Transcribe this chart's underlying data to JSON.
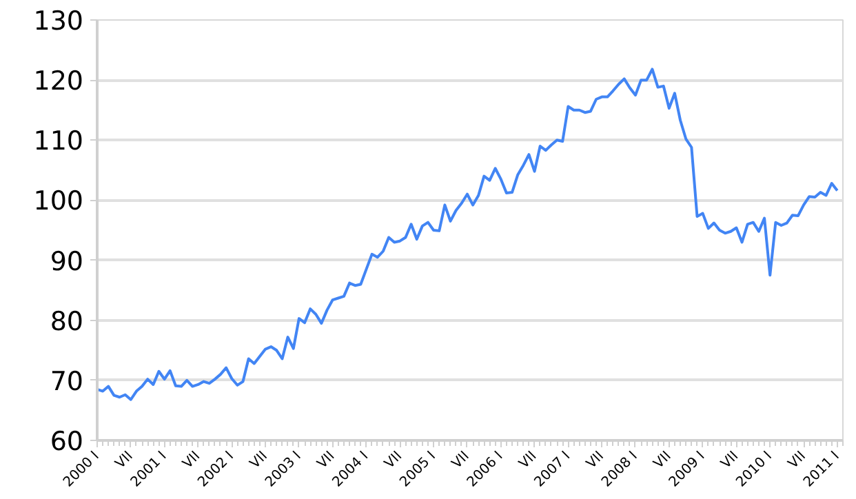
{
  "chart_data": {
    "type": "line",
    "x": [
      "2000-01",
      "2000-02",
      "2000-03",
      "2000-04",
      "2000-05",
      "2000-06",
      "2000-07",
      "2000-08",
      "2000-09",
      "2000-10",
      "2000-11",
      "2000-12",
      "2001-01",
      "2001-02",
      "2001-03",
      "2001-04",
      "2001-05",
      "2001-06",
      "2001-07",
      "2001-08",
      "2001-09",
      "2001-10",
      "2001-11",
      "2001-12",
      "2002-01",
      "2002-02",
      "2002-03",
      "2002-04",
      "2002-05",
      "2002-06",
      "2002-07",
      "2002-08",
      "2002-09",
      "2002-10",
      "2002-11",
      "2002-12",
      "2003-01",
      "2003-02",
      "2003-03",
      "2003-04",
      "2003-05",
      "2003-06",
      "2003-07",
      "2003-08",
      "2003-09",
      "2003-10",
      "2003-11",
      "2003-12",
      "2004-01",
      "2004-02",
      "2004-03",
      "2004-04",
      "2004-05",
      "2004-06",
      "2004-07",
      "2004-08",
      "2004-09",
      "2004-10",
      "2004-11",
      "2004-12",
      "2005-01",
      "2005-02",
      "2005-03",
      "2005-04",
      "2005-05",
      "2005-06",
      "2005-07",
      "2005-08",
      "2005-09",
      "2005-10",
      "2005-11",
      "2005-12",
      "2006-01",
      "2006-02",
      "2006-03",
      "2006-04",
      "2006-05",
      "2006-06",
      "2006-07",
      "2006-08",
      "2006-09",
      "2006-10",
      "2006-11",
      "2006-12",
      "2007-01",
      "2007-02",
      "2007-03",
      "2007-04",
      "2007-05",
      "2007-06",
      "2007-07",
      "2007-08",
      "2007-09",
      "2007-10",
      "2007-11",
      "2007-12",
      "2008-01",
      "2008-02",
      "2008-03",
      "2008-04",
      "2008-05",
      "2008-06",
      "2008-07",
      "2008-08",
      "2008-09",
      "2008-10",
      "2008-11",
      "2008-12",
      "2009-01",
      "2009-02",
      "2009-03",
      "2009-04",
      "2009-05",
      "2009-06",
      "2009-07",
      "2009-08",
      "2009-09",
      "2009-10",
      "2009-11",
      "2009-12",
      "2010-01",
      "2010-02",
      "2010-03",
      "2010-04",
      "2010-05",
      "2010-06",
      "2010-07",
      "2010-08",
      "2010-09",
      "2010-10",
      "2010-11",
      "2010-12",
      "2011-01"
    ],
    "series": [
      {
        "color": "#4285f4",
        "values": [
          68.5,
          68.2,
          69,
          67.5,
          67.2,
          67.6,
          66.8,
          68.2,
          69,
          70.2,
          69.3,
          71.5,
          70.2,
          71.6,
          69.1,
          69,
          70,
          69,
          69.3,
          69.8,
          69.5,
          70.2,
          71,
          72.1,
          70.3,
          69.2,
          69.8,
          73.6,
          72.8,
          74,
          75.2,
          75.6,
          75,
          73.6,
          77.2,
          75.3,
          80.3,
          79.6,
          81.9,
          81,
          79.5,
          81.7,
          83.4,
          83.7,
          84,
          86.2,
          85.8,
          86,
          88.5,
          91,
          90.5,
          91.5,
          93.8,
          93,
          93.2,
          93.8,
          96,
          93.5,
          95.7,
          96.3,
          95,
          94.9,
          99.2,
          96.5,
          98.3,
          99.5,
          101,
          99.2,
          100.8,
          104,
          103.3,
          105.3,
          103.5,
          101.2,
          101.3,
          104.2,
          105.8,
          107.6,
          104.8,
          109,
          108.3,
          109.2,
          110,
          109.8,
          115.6,
          115,
          115,
          114.6,
          114.8,
          116.8,
          117.2,
          117.2,
          118.2,
          119.3,
          120.2,
          118.7,
          117.5,
          120,
          120,
          121.8,
          118.8,
          119,
          115.3,
          117.8,
          113.3,
          110.2,
          108.8,
          97.3,
          97.8,
          95.3,
          96.2,
          95,
          94.5,
          94.8,
          95.4,
          93,
          96,
          96.3,
          94.8,
          97,
          87.5,
          96.3,
          95.8,
          96.2,
          97.5,
          97.4,
          99.2,
          100.6,
          100.5,
          101.3,
          100.8,
          102.8,
          101.6
        ]
      }
    ],
    "xlim": [
      "2000-01",
      "2011-02"
    ],
    "xticks": [
      {
        "value": "2000-01",
        "label": "2000 I"
      },
      {
        "value": "2000-07",
        "label": "VII"
      },
      {
        "value": "2001-01",
        "label": "2001 I"
      },
      {
        "value": "2001-07",
        "label": "VII"
      },
      {
        "value": "2002-01",
        "label": "2002 I"
      },
      {
        "value": "2002-07",
        "label": "VII"
      },
      {
        "value": "2003-01",
        "label": "2003 I"
      },
      {
        "value": "2003-07",
        "label": "VII"
      },
      {
        "value": "2004-01",
        "label": "2004 I"
      },
      {
        "value": "2004-07",
        "label": "VII"
      },
      {
        "value": "2005-01",
        "label": "2005 I"
      },
      {
        "value": "2005-07",
        "label": "VII"
      },
      {
        "value": "2006-01",
        "label": "2006 I"
      },
      {
        "value": "2006-07",
        "label": "VII"
      },
      {
        "value": "2007-01",
        "label": "2007 I"
      },
      {
        "value": "2007-07",
        "label": "VII"
      },
      {
        "value": "2008-01",
        "label": "2008 I"
      },
      {
        "value": "2008-07",
        "label": "VII"
      },
      {
        "value": "2009-01",
        "label": "2009 I"
      },
      {
        "value": "2009-07",
        "label": "VII"
      },
      {
        "value": "2010-01",
        "label": "2010 I"
      },
      {
        "value": "2010-07",
        "label": "VII"
      },
      {
        "value": "2011-01",
        "label": "2011 I"
      }
    ],
    "ylim": [
      60,
      130
    ],
    "yticks": [
      60,
      70,
      80,
      90,
      100,
      110,
      120,
      130
    ],
    "grid": "y",
    "line_style": "solid"
  }
}
